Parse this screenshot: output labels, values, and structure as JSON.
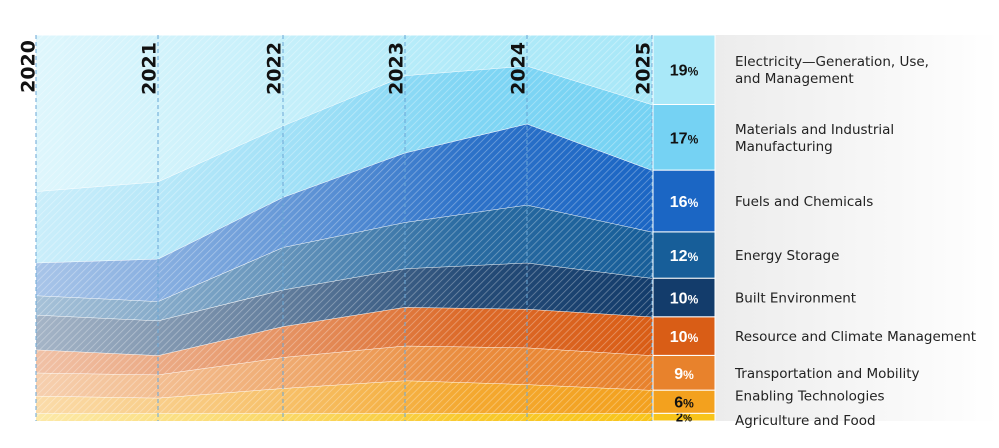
{
  "chart_data": {
    "type": "area",
    "stacked": true,
    "normalized": true,
    "x": [
      "2020",
      "2021",
      "2022",
      "2023",
      "2024",
      "2025"
    ],
    "legend_position": "right",
    "series": [
      {
        "name": "Agriculture and Food",
        "pct_label": "2",
        "color": "#f8c41a",
        "values": [
          2,
          2,
          2,
          2,
          2,
          2
        ]
      },
      {
        "name": "Enabling Technologies",
        "pct_label": "6",
        "color": "#f3a11e",
        "values": [
          4.5,
          4,
          6.5,
          8.5,
          7.5,
          6
        ]
      },
      {
        "name": "Transportation and Mobility",
        "pct_label": "9",
        "color": "#e8822c",
        "values": [
          6,
          6,
          8,
          9,
          9.5,
          9
        ]
      },
      {
        "name": "Resource and Climate Management",
        "pct_label": "10",
        "color": "#d95d16",
        "values": [
          6,
          5,
          8,
          10,
          10,
          10
        ]
      },
      {
        "name": "Built Environment",
        "pct_label": "10",
        "color": "#133c6b",
        "values": [
          9,
          9,
          9.5,
          10,
          12,
          10
        ]
      },
      {
        "name": "Energy Storage",
        "pct_label": "12",
        "color": "#175e99",
        "values": [
          5,
          5,
          11,
          12,
          15,
          12
        ]
      },
      {
        "name": "Fuels and Chemicals",
        "pct_label": "16",
        "color": "#1b66c4",
        "values": [
          8.5,
          11,
          13,
          18,
          21,
          16
        ]
      },
      {
        "name": "Materials and Industrial Manufacturing",
        "pct_label": "17",
        "color": "#75d2f3",
        "values": [
          18.5,
          20,
          18.5,
          20,
          15,
          17
        ]
      },
      {
        "name": "Electricity—Generation, Use, and Management",
        "pct_label": "19",
        "color": "#a9e8f8",
        "values": [
          40.5,
          38,
          23.5,
          10.5,
          8,
          18
        ]
      }
    ]
  },
  "label_lines": [
    [
      "Agriculture and Food"
    ],
    [
      "Enabling Technologies"
    ],
    [
      "Transportation and Mobility"
    ],
    [
      "Resource and Climate Management"
    ],
    [
      "Built Environment"
    ],
    [
      "Energy Storage"
    ],
    [
      "Fuels and Chemicals"
    ],
    [
      "Materials and Industrial",
      "Manufacturing"
    ],
    [
      "Electricity—Generation, Use,",
      "and Management"
    ]
  ],
  "pct_symbol": "%"
}
